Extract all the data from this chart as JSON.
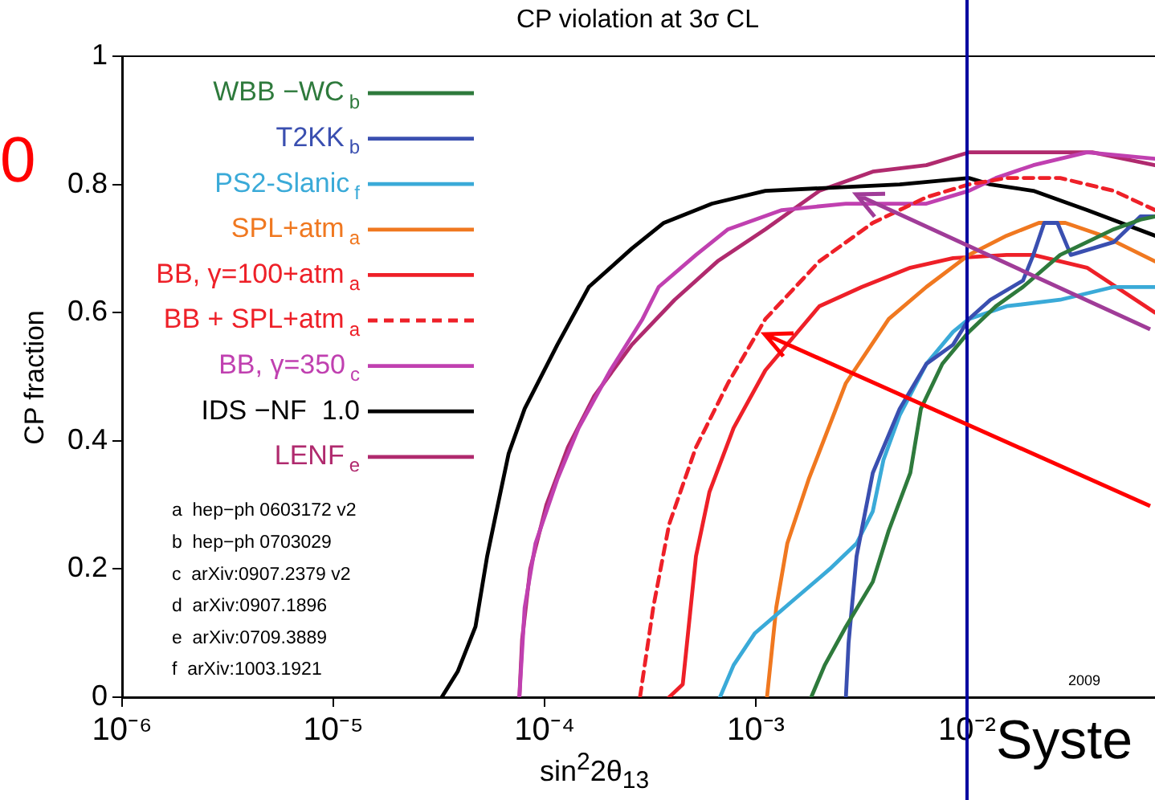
{
  "chart_data": {
    "type": "line",
    "title": "CP  violation at 3σ CL",
    "xlabel": "sin$^{2}$2θ$_{13}$",
    "ylabel": "CP  fraction",
    "log": "x",
    "grid": false,
    "legend": "top left",
    "marker": "none",
    "xlim": [
      1e-06,
      0.0776
    ],
    "ylim": [
      0,
      1
    ],
    "xticks": [
      {
        "value": 1e-06,
        "label": "10⁻⁶"
      },
      {
        "value": 1e-05,
        "label": "10⁻⁵"
      },
      {
        "value": 0.0001,
        "label": "10⁻⁴"
      },
      {
        "value": 0.001,
        "label": "10⁻³"
      },
      {
        "value": 0.01,
        "label": "10⁻²"
      }
    ],
    "yticks": [
      0,
      0.2,
      0.4,
      0.6,
      0.8,
      1
    ],
    "ref_lines": [
      {
        "axis": "x",
        "value": 0.01,
        "color": "#0000a0"
      }
    ],
    "annotations": [
      "a  hep−ph 0603172 v2",
      "b  hep−ph 0703029",
      "c  arXiv:0907.2379 v2",
      "d  arXiv:0907.1896",
      "e  arXiv:0709.3889",
      "f  arXiv:1003.1921",
      "2009",
      "Syste",
      "0"
    ],
    "series": [
      {
        "name": "WBB −WC$_{b}$",
        "color": "#2e7a3c",
        "x": [
          0.00183,
          0.00212,
          0.00267,
          0.00358,
          0.00426,
          0.00539,
          0.00605,
          0.00764,
          0.0102,
          0.0137,
          0.0184,
          0.0276,
          0.037,
          0.0495,
          0.0662,
          0.0776
        ],
        "values": [
          0,
          0.05,
          0.11,
          0.18,
          0.26,
          0.35,
          0.45,
          0.52,
          0.57,
          0.61,
          0.64,
          0.69,
          0.71,
          0.73,
          0.745,
          0.75
        ]
      },
      {
        "name": "T2KK$_{b}$",
        "color": "#3a4fb0",
        "x": [
          0.00267,
          0.00275,
          0.003,
          0.00358,
          0.0048,
          0.00642,
          0.00859,
          0.0102,
          0.0129,
          0.0184,
          0.0206,
          0.0232,
          0.0268,
          0.031,
          0.0392,
          0.0495,
          0.0662,
          0.0776
        ],
        "values": [
          0,
          0.085,
          0.22,
          0.35,
          0.45,
          0.52,
          0.55,
          0.59,
          0.62,
          0.65,
          0.69,
          0.74,
          0.74,
          0.69,
          0.7,
          0.71,
          0.75,
          0.75
        ]
      },
      {
        "name": "PS2-Slanic$_{f}$",
        "color": "#3aaad8",
        "x": [
          0.000677,
          0.000785,
          0.000991,
          0.00149,
          0.00224,
          0.003,
          0.00358,
          0.00402,
          0.0048,
          0.00642,
          0.00859,
          0.0102,
          0.0154,
          0.0276,
          0.0495,
          0.0776
        ],
        "values": [
          0,
          0.05,
          0.1,
          0.15,
          0.2,
          0.24,
          0.29,
          0.37,
          0.44,
          0.52,
          0.57,
          0.59,
          0.61,
          0.62,
          0.64,
          0.64
        ]
      },
      {
        "name": "SPL+atm$_{a}$",
        "color": "#f07820",
        "x": [
          0.00113,
          0.00125,
          0.00141,
          0.00178,
          0.00267,
          0.00426,
          0.00642,
          0.0102,
          0.0154,
          0.0219,
          0.0292,
          0.044,
          0.0776
        ],
        "values": [
          0,
          0.14,
          0.24,
          0.34,
          0.49,
          0.59,
          0.64,
          0.69,
          0.72,
          0.74,
          0.74,
          0.72,
          0.68
        ]
      },
      {
        "name": "BB, γ=100+atm$_{a}$",
        "color": "#ee2028",
        "x": [
          0.000389,
          0.000451,
          0.000521,
          0.000603,
          0.000785,
          0.00111,
          0.002,
          0.00318,
          0.00539,
          0.00859,
          0.0154,
          0.0206,
          0.037,
          0.0776
        ],
        "values": [
          0,
          0.02,
          0.22,
          0.32,
          0.42,
          0.51,
          0.61,
          0.64,
          0.67,
          0.685,
          0.69,
          0.69,
          0.67,
          0.6
        ]
      },
      {
        "name": "BB + SPL+atm$_{a}$",
        "color": "#ee2028",
        "line_style": "dashed",
        "x": [
          0.000283,
          0.000327,
          0.000389,
          0.000521,
          0.000739,
          0.00111,
          0.002,
          0.00358,
          0.00642,
          0.0102,
          0.0154,
          0.0276,
          0.0495,
          0.0776
        ],
        "values": [
          0,
          0.14,
          0.27,
          0.39,
          0.49,
          0.59,
          0.68,
          0.74,
          0.78,
          0.8,
          0.81,
          0.81,
          0.79,
          0.76
        ]
      },
      {
        "name": "BB, γ=350$_{c}$",
        "color": "#c040b0",
        "x": [
          7.6e-05,
          8.05e-05,
          9.06e-05,
          0.000115,
          0.000145,
          0.000205,
          0.000291,
          0.000347,
          0.000521,
          0.000739,
          0.00133,
          0.00267,
          0.00642,
          0.0102,
          0.0137,
          0.0206,
          0.037,
          0.0776
        ],
        "values": [
          0,
          0.14,
          0.24,
          0.34,
          0.42,
          0.51,
          0.59,
          0.64,
          0.69,
          0.73,
          0.76,
          0.77,
          0.77,
          0.79,
          0.81,
          0.83,
          0.85,
          0.84
        ]
      },
      {
        "name": "IDS −NF  1.0",
        "color": "#000000",
        "x": [
          3.26e-05,
          3.88e-05,
          4.71e-05,
          5.35e-05,
          6.01e-05,
          6.76e-05,
          8.05e-05,
          0.000115,
          0.000162,
          0.000259,
          0.000367,
          0.000621,
          0.00111,
          0.0048,
          0.0102,
          0.0129,
          0.0206,
          0.037,
          0.0776
        ],
        "values": [
          0,
          0.04,
          0.11,
          0.22,
          0.3,
          0.38,
          0.45,
          0.55,
          0.64,
          0.7,
          0.74,
          0.77,
          0.79,
          0.8,
          0.81,
          0.8,
          0.79,
          0.76,
          0.72
        ]
      },
      {
        "name": "LENF$_{e}$",
        "color": "#b02a6e",
        "x": [
          7.6e-05,
          7.83e-05,
          8.55e-05,
          0.000102,
          0.000129,
          0.000172,
          0.000259,
          0.000413,
          0.000659,
          0.00111,
          0.002,
          0.00358,
          0.00642,
          0.0102,
          0.0206,
          0.0392,
          0.0776
        ],
        "values": [
          0,
          0.09,
          0.2,
          0.3,
          0.39,
          0.47,
          0.55,
          0.62,
          0.68,
          0.73,
          0.79,
          0.82,
          0.83,
          0.85,
          0.85,
          0.85,
          0.83
        ]
      }
    ]
  }
}
